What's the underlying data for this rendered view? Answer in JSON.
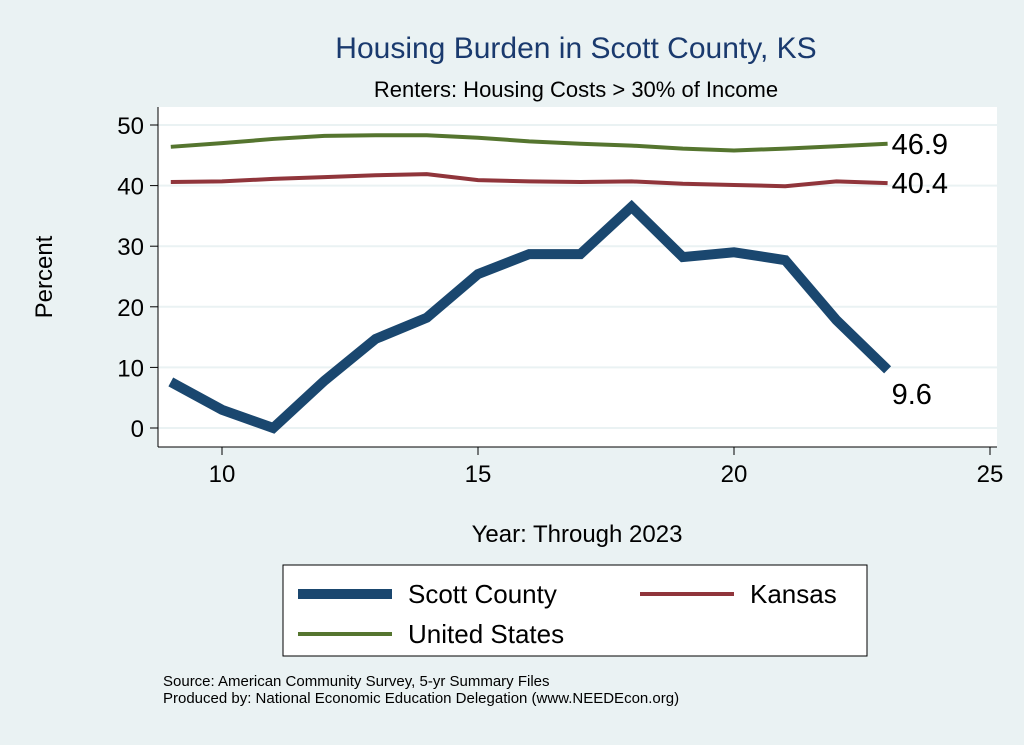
{
  "chart_data": {
    "type": "line",
    "title": "Housing Burden in Scott County, KS",
    "subtitle": "Renters: Housing Costs > 30% of Income",
    "xlabel": "Year: Through 2023",
    "ylabel": "Percent",
    "xlim": [
      8.7,
      25.2
    ],
    "ylim": [
      -1.5,
      52.5
    ],
    "xticks": [
      10,
      15,
      20,
      25
    ],
    "yticks": [
      0,
      10,
      20,
      30,
      40,
      50
    ],
    "grid": true,
    "legend": "bottom",
    "x": [
      9,
      10,
      11,
      12,
      13,
      14,
      15,
      16,
      17,
      18,
      19,
      20,
      21,
      22,
      23
    ],
    "series": [
      {
        "name": "Scott County",
        "color": "#1a476f",
        "values": [
          7.6,
          3.0,
          0.0,
          7.8,
          14.7,
          18.2,
          25.4,
          28.7,
          28.7,
          36.5,
          28.2,
          29.0,
          27.7,
          17.8,
          9.6
        ],
        "end_label": "9.6"
      },
      {
        "name": "Kansas",
        "color": "#90353b",
        "values": [
          40.6,
          40.7,
          41.1,
          41.4,
          41.7,
          41.9,
          40.9,
          40.7,
          40.6,
          40.7,
          40.3,
          40.1,
          39.9,
          40.7,
          40.4
        ],
        "end_label": "40.4"
      },
      {
        "name": "United States",
        "color": "#55752f",
        "values": [
          46.4,
          47.0,
          47.7,
          48.2,
          48.3,
          48.3,
          47.9,
          47.3,
          46.9,
          46.6,
          46.1,
          45.8,
          46.1,
          46.5,
          46.9
        ],
        "end_label": "46.9"
      }
    ]
  },
  "footer": {
    "source": "Source: American Community Survey, 5-yr Summary Files",
    "produced": "Produced by: National Economic Education Delegation (www.NEEDEcon.org)"
  }
}
